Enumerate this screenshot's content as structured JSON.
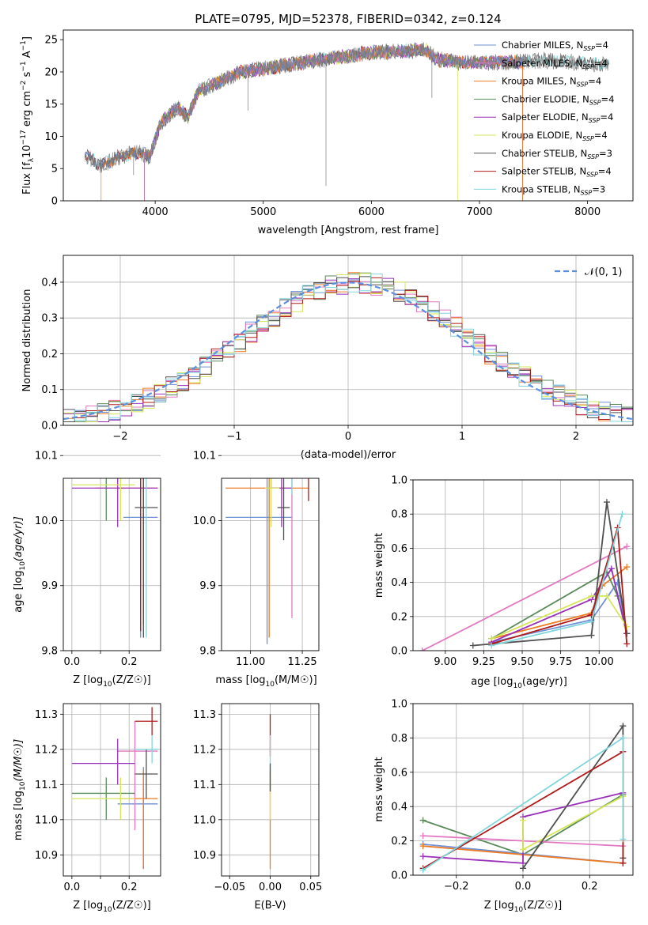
{
  "figure_title": "PLATE=0795, MJD=52378, FIBERID=0342, z=0.124",
  "colors": {
    "Chabrier MILES": "#6f8fd6",
    "Salpeter MILES": "#e377c2",
    "Kroupa MILES": "#ee7a22",
    "Chabrier ELODIE": "#5a8a5a",
    "Salpeter ELODIE": "#9b30b8",
    "Kroupa ELODIE": "#d5e65a",
    "Chabrier STELIB": "#505050",
    "Salpeter STELIB": "#b01a1a",
    "Kroupa STELIB": "#80d6dc",
    "Gaussian": "#5b8fe0"
  },
  "chart_data": [
    {
      "id": "spectrum",
      "type": "line",
      "title": "PLATE=0795, MJD=52378, FIBERID=0342, z=0.124",
      "xlabel": "wavelength [Angstrom, rest frame]",
      "ylabel": "Flux [f",
      "xlim": [
        3150,
        8420
      ],
      "ylim": [
        0,
        26.5
      ],
      "xticks": [
        4000,
        5000,
        6000,
        7000,
        8000
      ],
      "yticks": [
        0,
        5,
        10,
        15,
        20,
        25
      ],
      "grid": false,
      "legend_position": "top-right",
      "continuum_knots": [
        [
          3350,
          7
        ],
        [
          3500,
          5.5
        ],
        [
          3700,
          7
        ],
        [
          3850,
          7.5
        ],
        [
          3950,
          6.8
        ],
        [
          4050,
          12
        ],
        [
          4200,
          14.5
        ],
        [
          4300,
          13
        ],
        [
          4400,
          17
        ],
        [
          4600,
          18.5
        ],
        [
          4800,
          20
        ],
        [
          5000,
          20.5
        ],
        [
          5200,
          21
        ],
        [
          5500,
          21.8
        ],
        [
          5800,
          22.5
        ],
        [
          6000,
          23
        ],
        [
          6300,
          23.2
        ],
        [
          6500,
          23.5
        ],
        [
          6600,
          22
        ],
        [
          6800,
          21.5
        ],
        [
          7000,
          21.5
        ],
        [
          7300,
          21.5
        ],
        [
          7600,
          21.8
        ],
        [
          7900,
          21.5
        ],
        [
          8200,
          21
        ]
      ],
      "series": [
        {
          "name": "Chabrier MILES",
          "n_ssp": "4"
        },
        {
          "name": "Salpeter MILES",
          "n_ssp": "4"
        },
        {
          "name": "Kroupa MILES",
          "n_ssp": "4"
        },
        {
          "name": "Chabrier ELODIE",
          "n_ssp": "4"
        },
        {
          "name": "Salpeter ELODIE",
          "n_ssp": "4"
        },
        {
          "name": "Kroupa ELODIE",
          "n_ssp": "4"
        },
        {
          "name": "Chabrier STELIB",
          "n_ssp": "3"
        },
        {
          "name": "Salpeter STELIB",
          "n_ssp": "4"
        },
        {
          "name": "Kroupa STELIB",
          "n_ssp": "3"
        }
      ]
    },
    {
      "id": "residual-histogram",
      "type": "line",
      "xlabel": "(data-model)/error",
      "ylabel": "Normed distribution",
      "xlim": [
        -2.5,
        2.5
      ],
      "ylim": [
        0,
        0.475
      ],
      "xticks": [
        -2,
        -1,
        0,
        1,
        2
      ],
      "xtick_labels": [
        "−2",
        "−1",
        "0",
        "1",
        "2"
      ],
      "yticks": [
        0,
        0.1,
        0.2,
        0.3,
        0.4
      ],
      "ytick_labels": [
        "0.0",
        "0.1",
        "0.2",
        "0.3",
        "0.4"
      ],
      "grid": true,
      "legend_position": "top-right",
      "gaussian_label": "𝒩(0, 1)",
      "bin_width": 0.1
    },
    {
      "id": "age-vs-Z",
      "type": "scatter",
      "xlabel": "Z [log",
      "ylabel": "age  [log",
      "xlim": [
        -0.03,
        0.31
      ],
      "ylim": [
        9.8,
        10.065
      ],
      "xticks": [
        0,
        0.1,
        0.2
      ],
      "xtick_labels": [
        "0.0",
        "",
        "0.2"
      ],
      "yticks": [
        9.8,
        9.9,
        10.0,
        10.1
      ],
      "ytick_labels": [
        "9.8",
        "9.9",
        "10.0",
        "10.1"
      ],
      "grid": true,
      "points": [
        {
          "series": "Chabrier MILES",
          "x": 0.24,
          "y": 10.005,
          "xerr": [
            0.18,
            0.3
          ],
          "yerr": [
            9.82,
            10.1
          ]
        },
        {
          "series": "Salpeter MILES",
          "x": 0.25,
          "y": 10.07,
          "xerr": [
            0.16,
            0.3
          ],
          "yerr": [
            9.86,
            10.12
          ]
        },
        {
          "series": "Kroupa MILES",
          "x": 0.25,
          "y": 10.05,
          "xerr": [
            0.08,
            0.3
          ],
          "yerr": [
            9.84,
            10.09
          ]
        },
        {
          "series": "Chabrier ELODIE",
          "x": 0.12,
          "y": 10.08,
          "xerr": [
            0.0,
            0.22
          ],
          "yerr": [
            10.0,
            10.11
          ]
        },
        {
          "series": "Salpeter ELODIE",
          "x": 0.16,
          "y": 10.05,
          "xerr": [
            0.0,
            0.3
          ],
          "yerr": [
            9.99,
            10.11
          ]
        },
        {
          "series": "Kroupa ELODIE",
          "x": 0.17,
          "y": 10.055,
          "xerr": [
            0.0,
            0.22
          ],
          "yerr": [
            10.0,
            10.13
          ]
        },
        {
          "series": "Chabrier STELIB",
          "x": 0.25,
          "y": 10.02,
          "xerr": [
            0.22,
            0.3
          ],
          "yerr": [
            9.82,
            10.1
          ]
        },
        {
          "series": "Salpeter STELIB",
          "x": 0.24,
          "y": 10.075,
          "xerr": [
            0.22,
            0.3
          ],
          "yerr": [
            9.83,
            10.12
          ]
        },
        {
          "series": "Kroupa STELIB",
          "x": 0.26,
          "y": 10.1,
          "xerr": [
            0.22,
            0.3
          ],
          "yerr": [
            9.82,
            10.15
          ]
        }
      ]
    },
    {
      "id": "age-vs-mass",
      "type": "scatter",
      "xlabel": "mass [log",
      "ylabel": "",
      "xlim": [
        10.86,
        11.33
      ],
      "ylim": [
        9.8,
        10.065
      ],
      "xticks": [
        11.0,
        11.25
      ],
      "xtick_labels": [
        "11.00",
        "11.25"
      ],
      "yticks": [
        9.8,
        9.9,
        10.0,
        10.1
      ],
      "ytick_labels": [
        "9.8",
        "9.9",
        "10.0",
        "10.1"
      ],
      "grid": true,
      "points": [
        {
          "series": "Chabrier MILES",
          "x": 11.08,
          "y": 10.005,
          "xerr": [
            10.88,
            11.2
          ],
          "yerr": [
            9.81,
            10.11
          ]
        },
        {
          "series": "Salpeter MILES",
          "x": 11.2,
          "y": 10.07,
          "xerr": [
            11.12,
            11.24
          ],
          "yerr": [
            9.85,
            10.15
          ]
        },
        {
          "series": "Kroupa MILES",
          "x": 11.09,
          "y": 10.05,
          "xerr": [
            10.88,
            11.28
          ],
          "yerr": [
            9.82,
            10.1
          ]
        },
        {
          "series": "Chabrier ELODIE",
          "x": 11.1,
          "y": 10.08,
          "xerr": [
            11.05,
            11.14
          ],
          "yerr": [
            10.05,
            10.11
          ]
        },
        {
          "series": "Salpeter ELODIE",
          "x": 11.15,
          "y": 10.05,
          "xerr": [
            11.1,
            11.2
          ],
          "yerr": [
            9.99,
            10.12
          ]
        },
        {
          "series": "Kroupa ELODIE",
          "x": 11.1,
          "y": 10.05,
          "xerr": [
            11.07,
            11.14
          ],
          "yerr": [
            9.99,
            10.13
          ]
        },
        {
          "series": "Chabrier STELIB",
          "x": 11.16,
          "y": 10.02,
          "xerr": [
            11.13,
            11.19
          ],
          "yerr": [
            9.97,
            10.08
          ]
        },
        {
          "series": "Salpeter STELIB",
          "x": 11.28,
          "y": 10.075,
          "xerr": [
            11.26,
            11.3
          ],
          "yerr": [
            10.03,
            10.12
          ]
        },
        {
          "series": "Kroupa STELIB",
          "x": 11.2,
          "y": 10.1,
          "xerr": [
            11.15,
            11.24
          ],
          "yerr": [
            10.04,
            10.15
          ]
        }
      ]
    },
    {
      "id": "mass-weight-vs-age",
      "type": "line",
      "xlabel": "age  [log",
      "ylabel": "mass weight",
      "xlim": [
        8.79,
        10.22
      ],
      "ylim": [
        0,
        1.0
      ],
      "xticks": [
        9.0,
        9.25,
        9.5,
        9.75,
        10.0
      ],
      "xtick_labels": [
        "9.00",
        "9.25",
        "9.50",
        "9.75",
        "10.00"
      ],
      "yticks": [
        0,
        0.2,
        0.4,
        0.6,
        0.8,
        1.0
      ],
      "ytick_labels": [
        "0.0",
        "0.2",
        "0.4",
        "0.6",
        "0.8",
        "1.0"
      ],
      "grid": true,
      "series": [
        {
          "name": "Salpeter MILES",
          "x": [
            8.85,
            10.18
          ],
          "y": [
            0.0,
            0.61
          ]
        },
        {
          "name": "Kroupa MILES",
          "x": [
            9.3,
            9.95,
            10.02,
            10.18
          ],
          "y": [
            0.07,
            0.22,
            0.38,
            0.49
          ]
        },
        {
          "name": "Chabrier MILES",
          "x": [
            9.3,
            9.95,
            10.12,
            10.18
          ],
          "y": [
            0.05,
            0.18,
            0.4,
            0.1
          ]
        },
        {
          "name": "Chabrier ELODIE",
          "x": [
            9.3,
            10.05,
            10.12,
            10.18
          ],
          "y": [
            0.07,
            0.46,
            0.32,
            0.1
          ]
        },
        {
          "name": "Salpeter ELODIE",
          "x": [
            9.3,
            9.95,
            10.08,
            10.18
          ],
          "y": [
            0.05,
            0.3,
            0.48,
            0.1
          ]
        },
        {
          "name": "Kroupa ELODIE",
          "x": [
            9.3,
            9.95,
            10.05,
            10.18
          ],
          "y": [
            0.07,
            0.32,
            0.32,
            0.14
          ]
        },
        {
          "name": "Chabrier STELIB",
          "x": [
            9.18,
            9.95,
            10.05,
            10.18
          ],
          "y": [
            0.03,
            0.09,
            0.87,
            0.1
          ]
        },
        {
          "name": "Salpeter STELIB",
          "x": [
            9.3,
            9.95,
            10.12,
            10.18
          ],
          "y": [
            0.04,
            0.21,
            0.72,
            0.04
          ]
        },
        {
          "name": "Kroupa STELIB",
          "x": [
            9.3,
            9.95,
            10.15
          ],
          "y": [
            0.03,
            0.17,
            0.8
          ]
        }
      ]
    },
    {
      "id": "mass-vs-Z",
      "type": "scatter",
      "xlabel": "Z [log",
      "ylabel": "mass [log",
      "xlim": [
        -0.03,
        0.31
      ],
      "ylim": [
        10.84,
        11.33
      ],
      "xticks": [
        0,
        0.1,
        0.2
      ],
      "xtick_labels": [
        "0.0",
        "",
        "0.2"
      ],
      "yticks": [
        10.9,
        11.0,
        11.1,
        11.2,
        11.3
      ],
      "ytick_labels": [
        "10.9",
        "11.0",
        "11.1",
        "11.2",
        "11.3"
      ],
      "grid": true,
      "points": [
        {
          "series": "Chabrier MILES",
          "x": 0.25,
          "y": 11.045,
          "xerr": [
            0.16,
            0.3
          ],
          "yerr": [
            10.86,
            11.15
          ]
        },
        {
          "series": "Salpeter MILES",
          "x": 0.22,
          "y": 11.195,
          "xerr": [
            0.16,
            0.3
          ],
          "yerr": [
            10.97,
            11.28
          ]
        },
        {
          "series": "Kroupa MILES",
          "x": 0.25,
          "y": 11.06,
          "xerr": [
            0.16,
            0.3
          ],
          "yerr": [
            10.86,
            11.14
          ]
        },
        {
          "series": "Chabrier ELODIE",
          "x": 0.12,
          "y": 11.075,
          "xerr": [
            0.0,
            0.22
          ],
          "yerr": [
            11.0,
            11.12
          ]
        },
        {
          "series": "Salpeter ELODIE",
          "x": 0.16,
          "y": 11.16,
          "xerr": [
            0.0,
            0.22
          ],
          "yerr": [
            11.1,
            11.23
          ]
        },
        {
          "series": "Kroupa ELODIE",
          "x": 0.17,
          "y": 11.06,
          "xerr": [
            0.0,
            0.22
          ],
          "yerr": [
            11.0,
            11.12
          ]
        },
        {
          "series": "Chabrier STELIB",
          "x": 0.26,
          "y": 11.13,
          "xerr": [
            0.22,
            0.3
          ],
          "yerr": [
            11.06,
            11.2
          ]
        },
        {
          "series": "Salpeter STELIB",
          "x": 0.28,
          "y": 11.28,
          "xerr": [
            0.22,
            0.3
          ],
          "yerr": [
            11.24,
            11.32
          ]
        },
        {
          "series": "Kroupa STELIB",
          "x": 0.28,
          "y": 11.2,
          "xerr": [
            0.22,
            0.3
          ],
          "yerr": [
            11.16,
            11.24
          ]
        }
      ]
    },
    {
      "id": "mass-vs-EBV",
      "type": "scatter",
      "xlabel": "E(B-V)",
      "ylabel": "",
      "xlim": [
        -0.06,
        0.06
      ],
      "ylim": [
        10.84,
        11.33
      ],
      "xticks": [
        -0.05,
        0.0,
        0.05
      ],
      "xtick_labels": [
        "−0.05",
        "0.00",
        "0.05"
      ],
      "yticks": [
        10.9,
        11.0,
        11.1,
        11.2,
        11.3
      ],
      "ytick_labels": [
        "10.9",
        "11.0",
        "11.1",
        "11.2",
        "11.3"
      ],
      "grid": true,
      "points": [
        {
          "series": "Kroupa MILES",
          "x": 0.0,
          "y": 11.0,
          "yerr": [
            10.86,
            11.14
          ]
        },
        {
          "series": "Salpeter STELIB",
          "x": 0.0,
          "y": 11.25,
          "yerr": [
            11.18,
            11.3
          ]
        },
        {
          "series": "Kroupa STELIB",
          "x": 0.0,
          "y": 11.15,
          "yerr": [
            11.08,
            11.24
          ]
        },
        {
          "series": "Chabrier STELIB",
          "x": 0.0,
          "y": 11.12,
          "yerr": [
            11.08,
            11.16
          ]
        },
        {
          "series": "Kroupa ELODIE",
          "x": 0.0,
          "y": 11.04,
          "yerr": [
            11.0,
            11.08
          ]
        }
      ]
    },
    {
      "id": "mass-weight-vs-Z",
      "type": "line",
      "xlabel": "Z [log",
      "ylabel": "mass weight",
      "xlim": [
        -0.33,
        0.33
      ],
      "ylim": [
        0,
        1.0
      ],
      "xticks": [
        -0.2,
        0.0,
        0.2
      ],
      "xtick_labels": [
        "−0.2",
        "0.0",
        "0.2"
      ],
      "yticks": [
        0,
        0.2,
        0.4,
        0.6,
        0.8,
        1.0
      ],
      "ytick_labels": [
        "0.0",
        "0.2",
        "0.4",
        "0.6",
        "0.8",
        "1.0"
      ],
      "grid": true,
      "series": [
        {
          "name": "Chabrier ELODIE",
          "x": [
            -0.3,
            0.0,
            0.3
          ],
          "y": [
            0.32,
            0.12,
            0.47
          ]
        },
        {
          "name": "Salpeter MILES",
          "x": [
            -0.3,
            0.3
          ],
          "y": [
            0.23,
            0.17
          ]
        },
        {
          "name": "Chabrier MILES",
          "x": [
            -0.3,
            0.3
          ],
          "y": [
            0.18,
            0.07
          ]
        },
        {
          "name": "Kroupa MILES",
          "x": [
            -0.3,
            0.3
          ],
          "y": [
            0.17,
            0.07
          ]
        },
        {
          "name": "Salpeter ELODIE",
          "x": [
            -0.3,
            0.0,
            0.0,
            0.3
          ],
          "y": [
            0.11,
            0.07,
            0.34,
            0.48
          ]
        },
        {
          "name": "Kroupa ELODIE",
          "x": [
            0.0,
            0.0,
            0.3
          ],
          "y": [
            0.32,
            0.15,
            0.46
          ]
        },
        {
          "name": "Chabrier STELIB",
          "x": [
            0.0,
            0.3,
            0.3
          ],
          "y": [
            0.04,
            0.87,
            0.1
          ]
        },
        {
          "name": "Salpeter STELIB",
          "x": [
            -0.3,
            0.3,
            0.3
          ],
          "y": [
            0.04,
            0.72,
            0.07
          ]
        },
        {
          "name": "Kroupa STELIB",
          "x": [
            -0.3,
            0.3,
            0.3
          ],
          "y": [
            0.03,
            0.8,
            0.21
          ]
        }
      ]
    }
  ]
}
